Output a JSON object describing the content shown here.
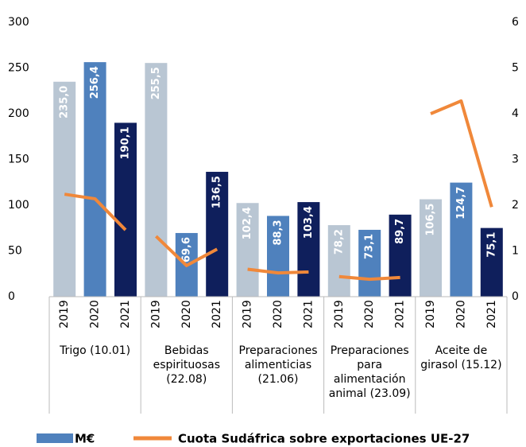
{
  "chart_data": {
    "type": "bar",
    "categories": [
      "2019",
      "2020",
      "2021",
      "2019",
      "2020",
      "2021",
      "2019",
      "2020",
      "2021",
      "2019",
      "2020",
      "2021",
      "2019",
      "2020",
      "2021"
    ],
    "groups": [
      [
        "Trigo (10.01)"
      ],
      [
        "Bebidas",
        "espirituosas",
        "(22.08)"
      ],
      [
        "Preparaciones",
        "alimenticias",
        "(21.06)"
      ],
      [
        "Preparaciones",
        "para",
        "alimentación",
        "animal   (23.09)"
      ],
      [
        "Aceite de",
        "girasol (15.12)"
      ]
    ],
    "series": [
      {
        "name": "M€",
        "type": "bar",
        "color": "#4f81bd",
        "colors": [
          "#b9c6d3",
          "#4f81bd",
          "#0f1f5c"
        ],
        "values": [
          235.0,
          256.4,
          190.1,
          255.5,
          69.6,
          136.5,
          102.4,
          88.3,
          103.4,
          78.2,
          73.1,
          89.7,
          106.5,
          124.7,
          75.1
        ],
        "value_labels": [
          "235,0",
          "256,4",
          "190,1",
          "255,5",
          "69,6",
          "136,5",
          "102,4",
          "88,3",
          "103,4",
          "78,2",
          "73,1",
          "89,7",
          "106,5",
          "124,7",
          "75,1"
        ]
      },
      {
        "name": "Cuota Sudáfrica sobre exportaciones UE-27",
        "type": "line",
        "axis": "y2",
        "color": "#f0883a",
        "values": [
          2.24,
          2.14,
          1.46,
          1.32,
          0.68,
          1.04,
          0.6,
          0.52,
          0.54,
          0.44,
          0.38,
          0.42,
          4.0,
          4.28,
          1.96
        ]
      }
    ],
    "ylim": [
      0,
      300
    ],
    "yticks": [
      0,
      50,
      100,
      150,
      200,
      250,
      300
    ],
    "y2lim": [
      0,
      6
    ],
    "y2ticks": [
      0,
      1,
      2,
      3,
      4,
      5,
      6
    ]
  }
}
